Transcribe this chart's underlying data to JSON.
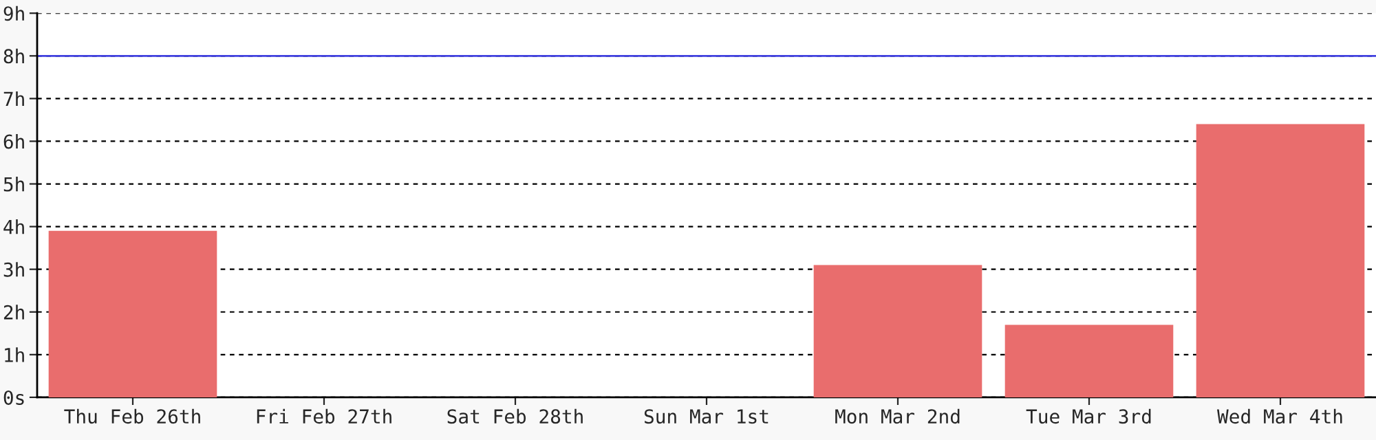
{
  "chart_data": {
    "type": "bar",
    "categories": [
      "Thu Feb 26th",
      "Fri Feb 27th",
      "Sat Feb 28th",
      "Sun Mar 1st",
      "Mon Mar 2nd",
      "Tue Mar 3rd",
      "Wed Mar 4th"
    ],
    "values": [
      3.9,
      0,
      0,
      0,
      3.1,
      1.7,
      6.4
    ],
    "color": "#e96d6d",
    "ylim": [
      0,
      9
    ],
    "yticks": [
      {
        "value": 0,
        "label": "0s"
      },
      {
        "value": 1,
        "label": "1h"
      },
      {
        "value": 2,
        "label": "2h"
      },
      {
        "value": 3,
        "label": "3h"
      },
      {
        "value": 4,
        "label": "4h"
      },
      {
        "value": 5,
        "label": "5h"
      },
      {
        "value": 6,
        "label": "6h"
      },
      {
        "value": 7,
        "label": "7h"
      },
      {
        "value": 8,
        "label": "8h"
      },
      {
        "value": 9,
        "label": "9h"
      }
    ],
    "grid": "y",
    "ref_lines": [
      {
        "axis": "y",
        "value": 8,
        "color": "#4040e0"
      }
    ]
  }
}
